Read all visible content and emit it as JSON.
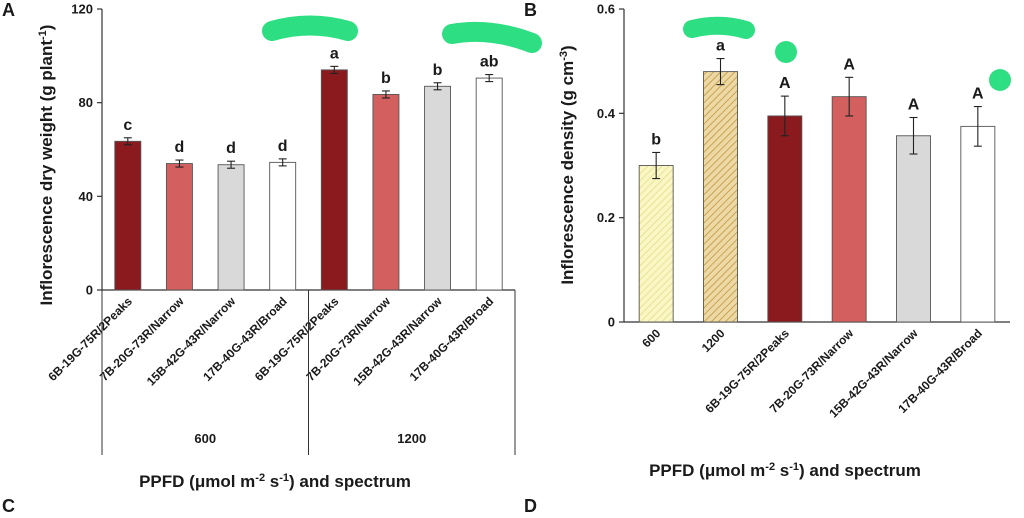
{
  "panels": {
    "A": "A",
    "B": "B",
    "C": "C",
    "D": "D"
  },
  "colors": {
    "dark_red": "#8b1a1f",
    "salmon": "#d35f5f",
    "gray": "#d9d9d9",
    "white": "#ffffff",
    "pale_yellow": "#fbf7c4",
    "tan": "#d9b86a",
    "green_marker": "#2ede82"
  },
  "chart_data": [
    {
      "type": "bar",
      "title": "",
      "ylabel": "Inflorescence dry weight (g plant",
      "ylabel_sup": "-1",
      "ylabel_end": ")",
      "xlabel_parts": [
        "PPFD (μmol m",
        "-2",
        " s",
        "-1",
        ") and spectrum"
      ],
      "ylim": [
        0,
        120
      ],
      "yticks": [
        0,
        40,
        80,
        120
      ],
      "categories": [
        "6B-19G-75R/2Peaks",
        "7B-20G-73R/Narrow",
        "15B-42G-43R/Narrow",
        "17B-40G-43R/Broad",
        "6B-19G-75R/2Peaks",
        "7B-20G-73R/Narrow",
        "15B-42G-43R/Narrow",
        "17B-40G-43R/Broad"
      ],
      "groups": [
        {
          "label": "600",
          "count": 4
        },
        {
          "label": "1200",
          "count": 4
        }
      ],
      "values": [
        63.5,
        54,
        53.5,
        54.5,
        94,
        83.5,
        87,
        90.5
      ],
      "errors": [
        1.5,
        1.5,
        1.5,
        1.5,
        1.5,
        1.5,
        1.5,
        1.5
      ],
      "letters": [
        "c",
        "d",
        "d",
        "d",
        "a",
        "b",
        "b",
        "ab"
      ],
      "fills": [
        "dark_red",
        "salmon",
        "gray",
        "white",
        "dark_red",
        "salmon",
        "gray",
        "white"
      ]
    },
    {
      "type": "bar",
      "title": "",
      "ylabel": "Inflorescence density (g cm",
      "ylabel_sup": "-3",
      "ylabel_end": ")",
      "xlabel_parts": [
        "PPFD (μmol m",
        "-2",
        " s",
        "-1",
        ") and spectrum"
      ],
      "ylim": [
        0,
        0.6
      ],
      "yticks": [
        0,
        0.2,
        0.4,
        0.6
      ],
      "ytick_labels": [
        "0",
        "0.2",
        "0.4",
        "0.6"
      ],
      "categories": [
        "600",
        "1200",
        "6B-19G-75R/2Peaks",
        "7B-20G-73R/Narrow",
        "15B-42G-43R/Narrow",
        "17B-40G-43R/Broad"
      ],
      "values": [
        0.3,
        0.48,
        0.395,
        0.432,
        0.357,
        0.375
      ],
      "errors": [
        0.025,
        0.025,
        0.038,
        0.037,
        0.035,
        0.038
      ],
      "letters": [
        "b",
        "a",
        "A",
        "A",
        "A",
        "A"
      ],
      "fills": [
        "pale_yellow",
        "tan",
        "dark_red",
        "salmon",
        "gray",
        "white"
      ],
      "hatched": [
        true,
        true,
        false,
        false,
        false,
        false
      ]
    }
  ]
}
